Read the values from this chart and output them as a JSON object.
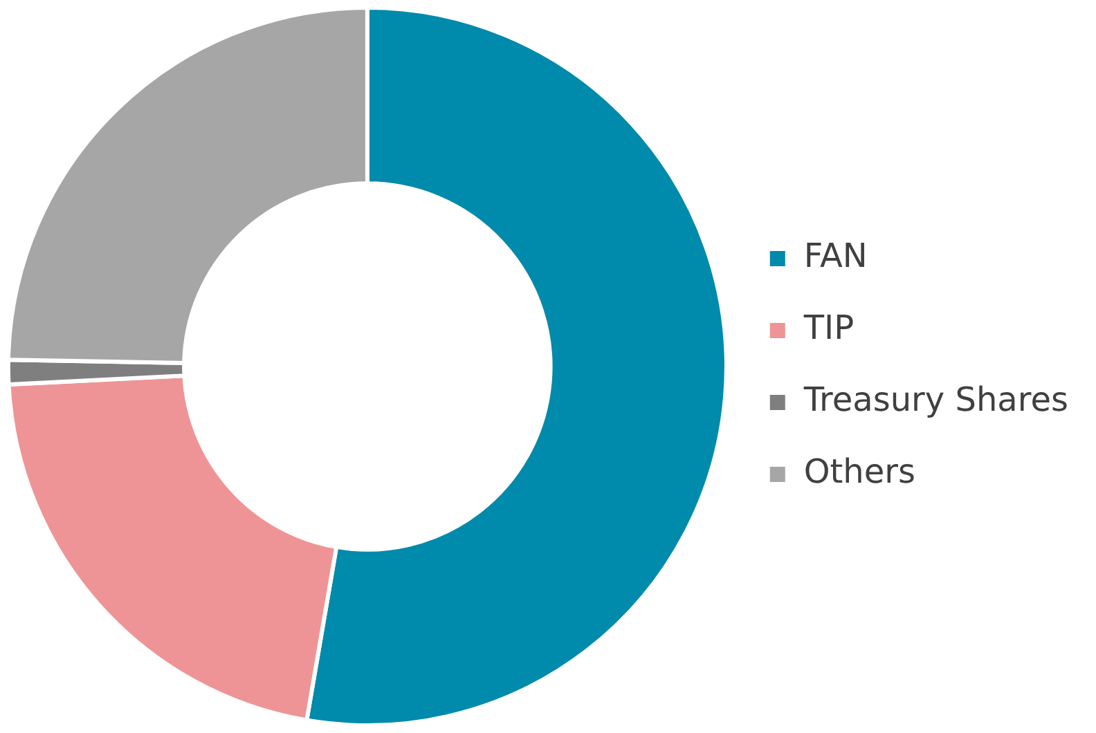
{
  "chart_data": {
    "type": "donut",
    "categories": [
      "FAN",
      "TIP",
      "Treasury Shares",
      "Others"
    ],
    "values": [
      52.7,
      21.5,
      1.1,
      24.7
    ],
    "colors": [
      "#008aab",
      "#ef9496",
      "#7f7f7f",
      "#a6a6a6"
    ],
    "legend": "right"
  }
}
